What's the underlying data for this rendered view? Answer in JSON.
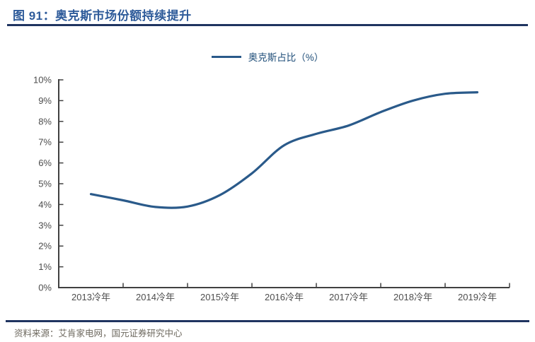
{
  "header": {
    "title": "图 91：奥克斯市场份额持续提升"
  },
  "legend": {
    "label": "奥克斯占比（%）"
  },
  "footer": {
    "source": "资料来源：艾肯家电网，国元证券研究中心"
  },
  "colors": {
    "bg": "#ffffff",
    "title_blue": "#2e5b9a",
    "rule_navy": "#1f3460",
    "line_blue": "#2a5a8a",
    "legend_text": "#1f4e79",
    "axis": "#404040",
    "tick_label": "#4d4d4d",
    "source_text": "#6e695f"
  },
  "chart_data": {
    "type": "line",
    "title": "奥克斯占比（%）",
    "categories": [
      "2013冷年",
      "2014冷年",
      "2015冷年",
      "2016冷年",
      "2017冷年",
      "2018冷年",
      "2019冷年"
    ],
    "series": [
      {
        "name": "奥克斯占比（%）",
        "values": [
          4.5,
          3.9,
          4.4,
          6.9,
          7.8,
          9.0,
          9.4
        ]
      }
    ],
    "ylim": [
      0,
      10
    ],
    "ytick_step": 1,
    "ytick_suffix": "%",
    "xlabel": "",
    "ylabel": "",
    "grid": false,
    "legend_position": "top-center",
    "line_smooth": true,
    "smooth_points": {
      "x": [
        2013,
        2013.5,
        2014,
        2014.5,
        2015,
        2015.5,
        2016,
        2016.5,
        2017,
        2017.5,
        2018,
        2018.5,
        2019
      ],
      "y": [
        4.5,
        4.2,
        3.88,
        3.9,
        4.45,
        5.5,
        6.85,
        7.4,
        7.8,
        8.45,
        9.0,
        9.33,
        9.4
      ]
    }
  }
}
